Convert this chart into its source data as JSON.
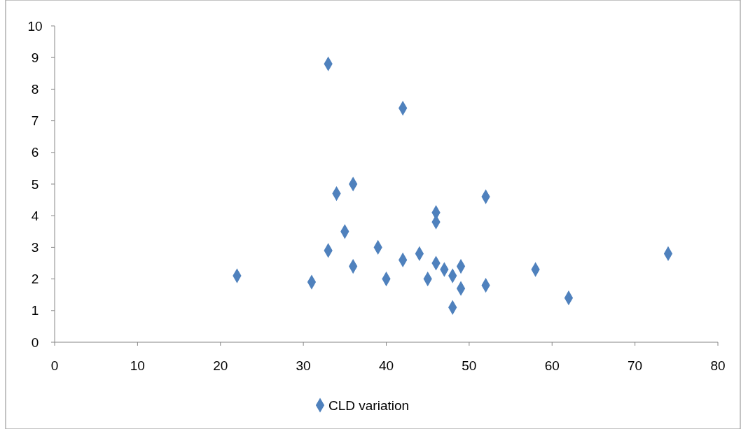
{
  "chart_data": {
    "type": "scatter",
    "xlim": [
      0,
      80
    ],
    "xticks": [
      0,
      10,
      20,
      30,
      40,
      50,
      60,
      70,
      80
    ],
    "ylim": [
      0,
      10
    ],
    "yticks": [
      0,
      1,
      2,
      3,
      4,
      5,
      6,
      7,
      8,
      9,
      10
    ],
    "grid": false,
    "legend": "bottom",
    "marker": "diamond",
    "series": [
      {
        "name": "CLD variation",
        "color": "#4f81bd",
        "x": [
          22,
          31,
          33,
          33,
          34,
          35,
          36,
          36,
          39,
          40,
          42,
          42,
          44,
          45,
          46,
          46,
          46,
          47,
          48,
          48,
          49,
          49,
          52,
          52,
          58,
          62,
          74
        ],
        "values": [
          2.1,
          1.9,
          8.8,
          2.9,
          4.7,
          3.5,
          5.0,
          2.4,
          3.0,
          2.0,
          7.4,
          2.6,
          2.8,
          2.0,
          4.1,
          3.8,
          2.5,
          2.3,
          2.1,
          1.1,
          2.4,
          1.7,
          4.6,
          1.8,
          2.3,
          1.4,
          2.8
        ]
      }
    ]
  }
}
